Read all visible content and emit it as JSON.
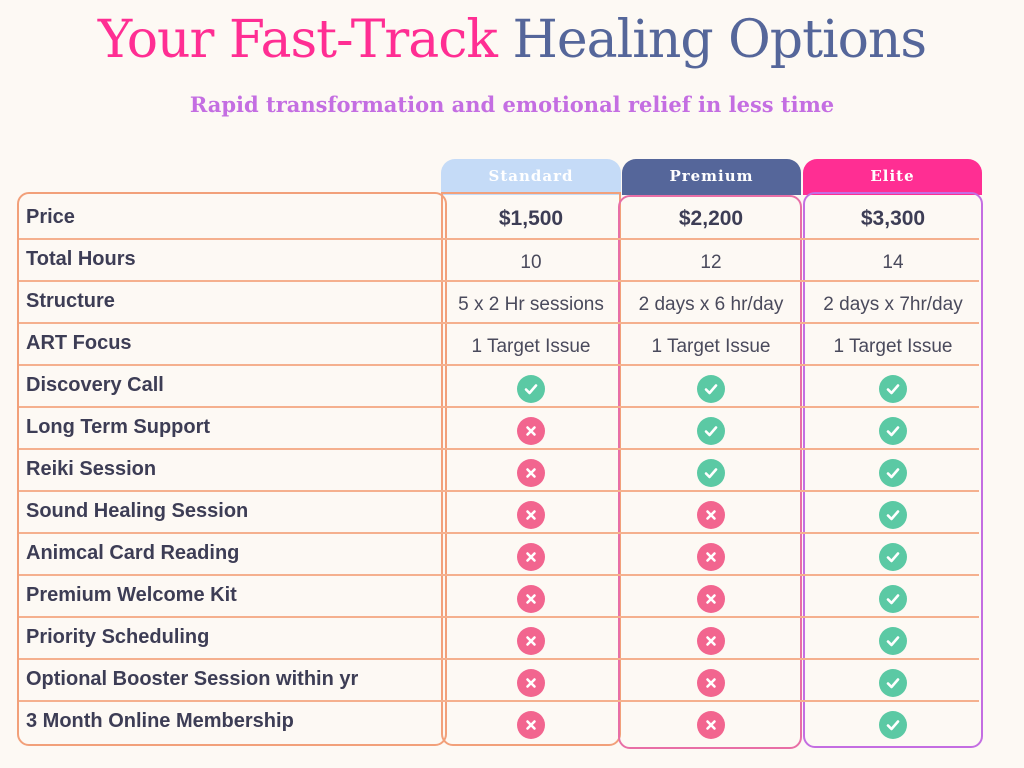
{
  "title": {
    "part1": "Your Fast-Track",
    "part2": "Healing Options"
  },
  "subtitle": "Rapid  transformation and emotional relief  in less time",
  "tiers": [
    "Standard",
    "Premium",
    "Elite"
  ],
  "rows": [
    {
      "label": "Price",
      "kind": "text",
      "cells": [
        "$1,500",
        "$2,200",
        "$3,300"
      ]
    },
    {
      "label": "Total Hours",
      "kind": "text",
      "cells": [
        "10",
        "12",
        "14"
      ]
    },
    {
      "label": "Structure",
      "kind": "text",
      "cells": [
        "5 x 2 Hr sessions",
        "2 days x 6 hr/day",
        "2 days x 7hr/day"
      ]
    },
    {
      "label": "ART Focus",
      "kind": "text",
      "cells": [
        "1 Target Issue",
        "1 Target Issue",
        "1 Target Issue"
      ]
    },
    {
      "label": "Discovery Call",
      "kind": "mark",
      "cells": [
        true,
        true,
        true
      ]
    },
    {
      "label": "Long Term Support",
      "kind": "mark",
      "cells": [
        false,
        true,
        true
      ]
    },
    {
      "label": "Reiki Session",
      "kind": "mark",
      "cells": [
        false,
        true,
        true
      ]
    },
    {
      "label": "Sound Healing Session",
      "kind": "mark",
      "cells": [
        false,
        false,
        true
      ]
    },
    {
      "label": "Animcal Card Reading",
      "kind": "mark",
      "cells": [
        false,
        false,
        true
      ]
    },
    {
      "label": "Premium Welcome Kit",
      "kind": "mark",
      "cells": [
        false,
        false,
        true
      ]
    },
    {
      "label": "Priority Scheduling",
      "kind": "mark",
      "cells": [
        false,
        false,
        true
      ]
    },
    {
      "label": "Optional Booster Session within yr",
      "kind": "mark",
      "cells": [
        false,
        false,
        true
      ]
    },
    {
      "label": "3 Month Online Membership",
      "kind": "mark",
      "cells": [
        false,
        false,
        true
      ]
    }
  ],
  "colors": {
    "title_pink": "#ff2e93",
    "title_blue": "#55669a",
    "subtitle_purple": "#c46ee2",
    "check_green": "#5bc9a4",
    "cross_pink": "#f2658f",
    "grid_orange": "#f5b08e"
  },
  "icons": {
    "included": "check-circle-icon",
    "excluded": "x-circle-icon"
  }
}
